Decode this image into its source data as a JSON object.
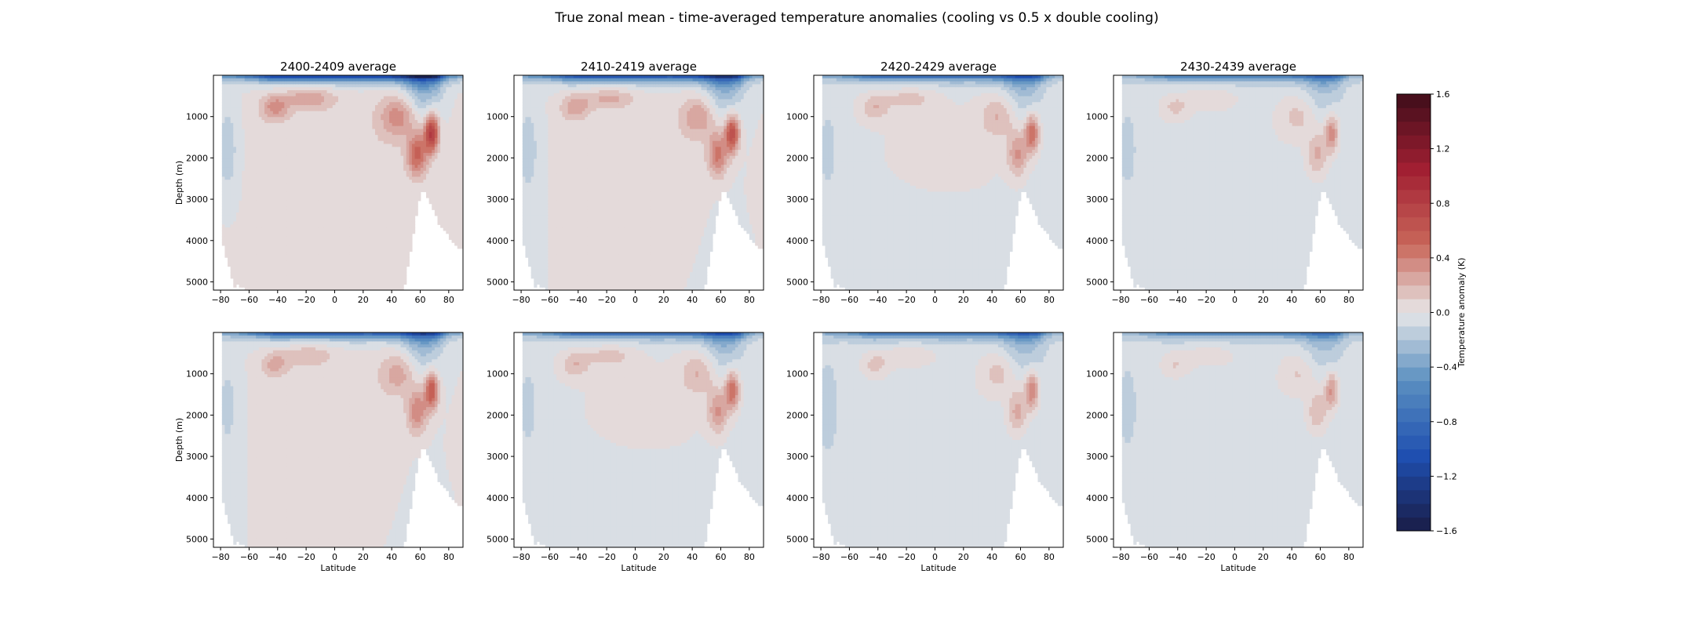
{
  "figure": {
    "suptitle": "True zonal mean - time-averaged temperature anomalies (cooling vs 0.5 x double cooling)"
  },
  "colors": {
    "cold_extreme": "#1a1c46",
    "cold": "#1f4fb0",
    "cool": "#5a8fc0",
    "neutral": "#e7e7e8",
    "warm": "#c9675a",
    "warm_extreme": "#3f0d1a",
    "mask": "#ffffff"
  },
  "chart_data": {
    "type": "heatmap",
    "title": "True zonal mean - time-averaged temperature anomalies (cooling vs 0.5 x double cooling)",
    "xlabel": "Latitude",
    "ylabel": "Depth (m)",
    "xlim": [
      -85,
      90
    ],
    "ylim": [
      5200,
      0
    ],
    "xticks": [
      -80,
      -60,
      -40,
      -20,
      0,
      20,
      40,
      60,
      80
    ],
    "yticks": [
      1000,
      2000,
      3000,
      4000,
      5000
    ],
    "colorbar": {
      "label": "Temperature anomaly (K)",
      "vmin": -1.6,
      "vmax": 1.6,
      "levels": 32,
      "ticks": [
        "-1.6",
        "-1.2",
        "-0.8",
        "-0.4",
        "0.0",
        "0.4",
        "0.8",
        "1.2",
        "1.6"
      ],
      "placement": "right"
    },
    "panels": [
      {
        "row": 0,
        "col": 0,
        "title": "2400-2409 average",
        "amplitude": 1.0,
        "background": 0.02
      },
      {
        "row": 0,
        "col": 1,
        "title": "2410-2419 average",
        "amplitude": 0.85,
        "background": 0.0
      },
      {
        "row": 0,
        "col": 2,
        "title": "2420-2429 average",
        "amplitude": 0.65,
        "background": -0.02
      },
      {
        "row": 0,
        "col": 3,
        "title": "2430-2439 average",
        "amplitude": 0.5,
        "background": -0.04
      },
      {
        "row": 1,
        "col": 0,
        "title": "",
        "amplitude": 0.75,
        "background": 0.0
      },
      {
        "row": 1,
        "col": 1,
        "title": "",
        "amplitude": 0.65,
        "background": -0.02
      },
      {
        "row": 1,
        "col": 2,
        "title": "",
        "amplitude": 0.55,
        "background": -0.05
      },
      {
        "row": 1,
        "col": 3,
        "title": "",
        "amplitude": 0.45,
        "background": -0.05
      }
    ]
  }
}
